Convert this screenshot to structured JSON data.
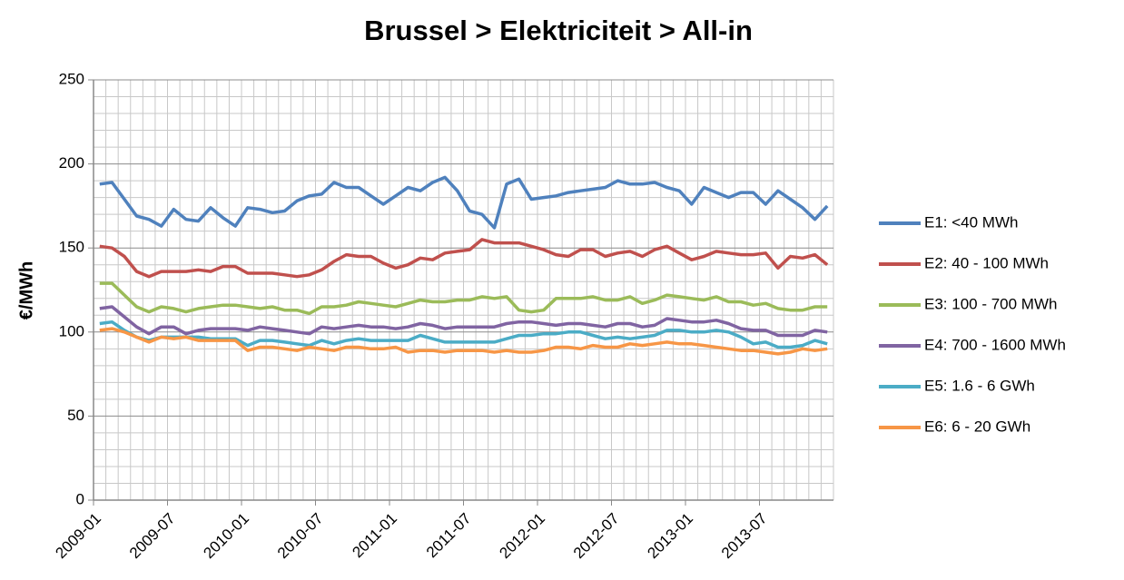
{
  "chart_data": {
    "type": "line",
    "title": "Brussel > Elektriciteit > All-in",
    "y_label": "€/MWh",
    "categories": [
      "2009-01",
      null,
      null,
      null,
      null,
      null,
      "2009-07",
      null,
      null,
      null,
      null,
      null,
      "2010-01",
      null,
      null,
      null,
      null,
      null,
      "2010-07",
      null,
      null,
      null,
      null,
      null,
      "2011-01",
      null,
      null,
      null,
      null,
      null,
      "2011-07",
      null,
      null,
      null,
      null,
      null,
      "2012-01",
      null,
      null,
      null,
      null,
      null,
      "2012-07",
      null,
      null,
      null,
      null,
      null,
      "2013-01",
      null,
      null,
      null,
      null,
      null,
      "2013-07",
      null,
      null,
      null,
      null,
      null
    ],
    "ylim": [
      0,
      250
    ],
    "yticks": [
      0,
      50,
      100,
      150,
      200,
      250
    ],
    "grid": true,
    "legend": "right",
    "series": [
      {
        "name": "E1: <40 MWh",
        "color": "#4f81bd",
        "values": [
          188,
          189,
          179,
          169,
          167,
          163,
          173,
          167,
          166,
          174,
          168,
          163,
          174,
          173,
          171,
          172,
          178,
          181,
          182,
          189,
          186,
          186,
          181,
          176,
          181,
          186,
          184,
          189,
          192,
          184,
          172,
          170,
          162,
          188,
          191,
          179,
          180,
          181,
          183,
          184,
          185,
          186,
          190,
          188,
          188,
          189,
          186,
          184,
          176,
          186,
          183,
          180,
          183,
          183,
          176,
          184,
          179,
          174,
          167,
          175
        ]
      },
      {
        "name": "E2: 40 - 100 MWh",
        "color": "#c0504d",
        "values": [
          151,
          150,
          145,
          136,
          133,
          136,
          136,
          136,
          137,
          136,
          139,
          139,
          135,
          135,
          135,
          134,
          133,
          134,
          137,
          142,
          146,
          145,
          145,
          141,
          138,
          140,
          144,
          143,
          147,
          148,
          149,
          155,
          153,
          153,
          153,
          151,
          149,
          146,
          145,
          149,
          149,
          145,
          147,
          148,
          145,
          149,
          151,
          147,
          143,
          145,
          148,
          147,
          146,
          146,
          147,
          138,
          145,
          144,
          146,
          140
        ]
      },
      {
        "name": "E3: 100 - 700 MWh",
        "color": "#9bbb59",
        "values": [
          129,
          129,
          122,
          115,
          112,
          115,
          114,
          112,
          114,
          115,
          116,
          116,
          115,
          114,
          115,
          113,
          113,
          111,
          115,
          115,
          116,
          118,
          117,
          116,
          115,
          117,
          119,
          118,
          118,
          119,
          119,
          121,
          120,
          121,
          113,
          112,
          113,
          120,
          120,
          120,
          121,
          119,
          119,
          121,
          117,
          119,
          122,
          121,
          120,
          119,
          121,
          118,
          118,
          116,
          117,
          114,
          113,
          113,
          115,
          115
        ]
      },
      {
        "name": "E4: 700 - 1600 MWh",
        "color": "#8064a2",
        "values": [
          114,
          115,
          109,
          103,
          99,
          103,
          103,
          99,
          101,
          102,
          102,
          102,
          101,
          103,
          102,
          101,
          100,
          99,
          103,
          102,
          103,
          104,
          103,
          103,
          102,
          103,
          105,
          104,
          102,
          103,
          103,
          103,
          103,
          105,
          106,
          106,
          105,
          104,
          105,
          105,
          104,
          103,
          105,
          105,
          103,
          104,
          108,
          107,
          106,
          106,
          107,
          105,
          102,
          101,
          101,
          98,
          98,
          98,
          101,
          100
        ]
      },
      {
        "name": "E5: 1.6 - 6 GWh",
        "color": "#4bacc6",
        "values": [
          105,
          106,
          101,
          97,
          95,
          97,
          97,
          97,
          97,
          96,
          96,
          96,
          92,
          95,
          95,
          94,
          93,
          92,
          95,
          93,
          95,
          96,
          95,
          95,
          95,
          95,
          98,
          96,
          94,
          94,
          94,
          94,
          94,
          96,
          98,
          98,
          99,
          99,
          100,
          100,
          98,
          96,
          97,
          96,
          97,
          98,
          101,
          101,
          100,
          100,
          101,
          100,
          97,
          93,
          94,
          91,
          91,
          92,
          95,
          93
        ]
      },
      {
        "name": "E6: 6 - 20 GWh",
        "color": "#f79646",
        "values": [
          101,
          102,
          100,
          97,
          94,
          97,
          96,
          97,
          95,
          95,
          95,
          95,
          89,
          91,
          91,
          90,
          89,
          91,
          90,
          89,
          91,
          91,
          90,
          90,
          91,
          88,
          89,
          89,
          88,
          89,
          89,
          89,
          88,
          89,
          88,
          88,
          89,
          91,
          91,
          90,
          92,
          91,
          91,
          93,
          92,
          93,
          94,
          93,
          93,
          92,
          91,
          90,
          89,
          89,
          88,
          87,
          88,
          90,
          89,
          90
        ]
      }
    ]
  }
}
